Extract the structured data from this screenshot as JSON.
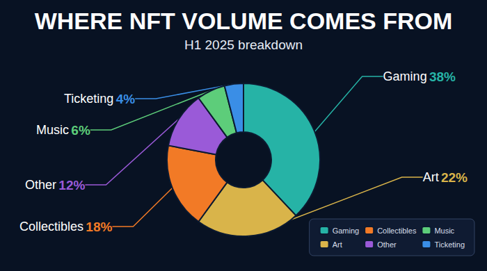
{
  "chart_data": {
    "type": "pie",
    "title": "WHERE NFT VOLUME COMES FROM",
    "subtitle": "H1 2025 breakdown",
    "categories": [
      "Gaming",
      "Art",
      "Collectibles",
      "Other",
      "Music",
      "Ticketing"
    ],
    "values": [
      38,
      22,
      18,
      12,
      6,
      4
    ],
    "value_labels": [
      "38%",
      "22%",
      "18%",
      "12%",
      "6%",
      "4%"
    ],
    "colors": [
      "#26b3a6",
      "#d9b44a",
      "#f27a26",
      "#9a5ad8",
      "#5dcd7a",
      "#3a8ee6"
    ],
    "legend": "bottom-right",
    "data_labels": true
  }
}
